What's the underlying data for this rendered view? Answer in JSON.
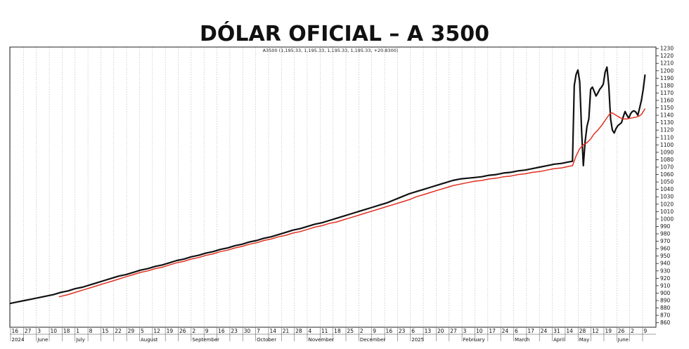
{
  "chart_data": {
    "type": "line",
    "title": "DÓLAR OFICIAL – A 3500",
    "subtitle": "A3500 (1,195.33, 1,195.33, 1,195.33, 1,195.33, +20.8300)",
    "ylim": [
      854,
      1232
    ],
    "yticks": [
      860,
      870,
      880,
      890,
      900,
      910,
      920,
      930,
      940,
      950,
      960,
      970,
      980,
      990,
      1000,
      1010,
      1020,
      1030,
      1040,
      1050,
      1060,
      1070,
      1080,
      1090,
      1100,
      1110,
      1120,
      1130,
      1140,
      1150,
      1160,
      1170,
      1180,
      1190,
      1200,
      1210,
      1220,
      1230
    ],
    "x_day_ticks": [
      "16",
      "27",
      "3",
      "10",
      "18",
      "1",
      "8",
      "15",
      "22",
      "29",
      "5",
      "12",
      "19",
      "26",
      "2",
      "9",
      "16",
      "23",
      "30",
      "7",
      "14",
      "21",
      "28",
      "4",
      "11",
      "18",
      "25",
      "2",
      "9",
      "16",
      "23",
      "6",
      "13",
      "20",
      "27",
      "3",
      "10",
      "17",
      "24",
      "6",
      "17",
      "24",
      "31",
      "14",
      "28",
      "12",
      "19",
      "26",
      "2",
      "9"
    ],
    "x_month_labels": [
      "2024",
      "June",
      "July",
      "August",
      "September",
      "October",
      "November",
      "December",
      "2025",
      "February",
      "March",
      "April",
      "May",
      "June"
    ],
    "series": [
      {
        "color": "#111111",
        "points": [
          [
            0,
            886
          ],
          [
            4,
            888
          ],
          [
            8,
            890
          ],
          [
            12,
            892
          ],
          [
            16,
            894
          ],
          [
            20,
            896
          ],
          [
            24,
            898
          ],
          [
            28,
            901
          ],
          [
            32,
            903
          ],
          [
            36,
            906
          ],
          [
            40,
            908
          ],
          [
            44,
            911
          ],
          [
            48,
            914
          ],
          [
            52,
            917
          ],
          [
            56,
            920
          ],
          [
            60,
            923
          ],
          [
            64,
            925
          ],
          [
            68,
            928
          ],
          [
            72,
            931
          ],
          [
            76,
            933
          ],
          [
            80,
            936
          ],
          [
            84,
            938
          ],
          [
            88,
            941
          ],
          [
            92,
            944
          ],
          [
            96,
            946
          ],
          [
            100,
            949
          ],
          [
            104,
            951
          ],
          [
            108,
            954
          ],
          [
            112,
            956
          ],
          [
            116,
            959
          ],
          [
            120,
            961
          ],
          [
            124,
            964
          ],
          [
            128,
            966
          ],
          [
            132,
            969
          ],
          [
            136,
            971
          ],
          [
            140,
            974
          ],
          [
            144,
            976
          ],
          [
            148,
            979
          ],
          [
            152,
            982
          ],
          [
            156,
            985
          ],
          [
            160,
            987
          ],
          [
            164,
            990
          ],
          [
            168,
            993
          ],
          [
            172,
            995
          ],
          [
            176,
            998
          ],
          [
            180,
            1001
          ],
          [
            184,
            1004
          ],
          [
            188,
            1007
          ],
          [
            192,
            1010
          ],
          [
            196,
            1013
          ],
          [
            200,
            1016
          ],
          [
            204,
            1019
          ],
          [
            208,
            1022
          ],
          [
            212,
            1026
          ],
          [
            216,
            1030
          ],
          [
            220,
            1034
          ],
          [
            224,
            1037
          ],
          [
            228,
            1040
          ],
          [
            232,
            1043
          ],
          [
            236,
            1046
          ],
          [
            240,
            1049
          ],
          [
            244,
            1052
          ],
          [
            248,
            1054
          ],
          [
            252,
            1055
          ],
          [
            256,
            1056
          ],
          [
            260,
            1057
          ],
          [
            264,
            1059
          ],
          [
            268,
            1060
          ],
          [
            272,
            1062
          ],
          [
            276,
            1063
          ],
          [
            280,
            1065
          ],
          [
            284,
            1066
          ],
          [
            288,
            1068
          ],
          [
            292,
            1070
          ],
          [
            296,
            1072
          ],
          [
            300,
            1074
          ],
          [
            304,
            1075
          ],
          [
            308,
            1077
          ],
          [
            310,
            1078
          ],
          [
            311,
            1180
          ],
          [
            312,
            1195
          ],
          [
            313,
            1201
          ],
          [
            314,
            1185
          ],
          [
            315,
            1120
          ],
          [
            316,
            1072
          ],
          [
            317,
            1105
          ],
          [
            318,
            1125
          ],
          [
            319,
            1135
          ],
          [
            320,
            1175
          ],
          [
            321,
            1178
          ],
          [
            322,
            1172
          ],
          [
            323,
            1166
          ],
          [
            324,
            1170
          ],
          [
            325,
            1175
          ],
          [
            326,
            1178
          ],
          [
            327,
            1182
          ],
          [
            328,
            1198
          ],
          [
            329,
            1205
          ],
          [
            330,
            1180
          ],
          [
            331,
            1135
          ],
          [
            332,
            1120
          ],
          [
            333,
            1116
          ],
          [
            334,
            1122
          ],
          [
            335,
            1126
          ],
          [
            336,
            1128
          ],
          [
            337,
            1130
          ],
          [
            338,
            1138
          ],
          [
            339,
            1145
          ],
          [
            340,
            1140
          ],
          [
            341,
            1136
          ],
          [
            342,
            1142
          ],
          [
            343,
            1145
          ],
          [
            344,
            1146
          ],
          [
            345,
            1144
          ],
          [
            346,
            1140
          ],
          [
            347,
            1150
          ],
          [
            348,
            1160
          ],
          [
            349,
            1175
          ],
          [
            350,
            1195
          ]
        ]
      },
      {
        "color": "#e03020",
        "points": [
          [
            27,
            895
          ],
          [
            32,
            898
          ],
          [
            36,
            901
          ],
          [
            40,
            904
          ],
          [
            44,
            907
          ],
          [
            48,
            910
          ],
          [
            52,
            913
          ],
          [
            56,
            916
          ],
          [
            60,
            919
          ],
          [
            64,
            922
          ],
          [
            68,
            925
          ],
          [
            72,
            928
          ],
          [
            76,
            930
          ],
          [
            80,
            933
          ],
          [
            84,
            935
          ],
          [
            88,
            938
          ],
          [
            92,
            941
          ],
          [
            96,
            943
          ],
          [
            100,
            946
          ],
          [
            104,
            948
          ],
          [
            108,
            951
          ],
          [
            112,
            953
          ],
          [
            116,
            956
          ],
          [
            120,
            958
          ],
          [
            124,
            961
          ],
          [
            128,
            963
          ],
          [
            132,
            966
          ],
          [
            136,
            968
          ],
          [
            140,
            971
          ],
          [
            144,
            973
          ],
          [
            148,
            976
          ],
          [
            152,
            978
          ],
          [
            156,
            981
          ],
          [
            160,
            983
          ],
          [
            164,
            986
          ],
          [
            168,
            989
          ],
          [
            172,
            991
          ],
          [
            176,
            994
          ],
          [
            180,
            996
          ],
          [
            184,
            999
          ],
          [
            188,
            1002
          ],
          [
            192,
            1005
          ],
          [
            196,
            1008
          ],
          [
            200,
            1011
          ],
          [
            204,
            1014
          ],
          [
            208,
            1017
          ],
          [
            212,
            1020
          ],
          [
            216,
            1023
          ],
          [
            220,
            1026
          ],
          [
            224,
            1030
          ],
          [
            228,
            1033
          ],
          [
            232,
            1036
          ],
          [
            236,
            1039
          ],
          [
            240,
            1042
          ],
          [
            244,
            1045
          ],
          [
            248,
            1047
          ],
          [
            252,
            1049
          ],
          [
            256,
            1051
          ],
          [
            260,
            1052
          ],
          [
            264,
            1054
          ],
          [
            268,
            1055
          ],
          [
            272,
            1057
          ],
          [
            276,
            1058
          ],
          [
            280,
            1060
          ],
          [
            284,
            1061
          ],
          [
            288,
            1063
          ],
          [
            292,
            1064
          ],
          [
            296,
            1066
          ],
          [
            300,
            1068
          ],
          [
            304,
            1069
          ],
          [
            308,
            1071
          ],
          [
            310,
            1072
          ],
          [
            312,
            1085
          ],
          [
            314,
            1095
          ],
          [
            316,
            1100
          ],
          [
            318,
            1103
          ],
          [
            320,
            1108
          ],
          [
            322,
            1115
          ],
          [
            324,
            1120
          ],
          [
            326,
            1126
          ],
          [
            328,
            1133
          ],
          [
            330,
            1140
          ],
          [
            331,
            1143
          ],
          [
            332,
            1143
          ],
          [
            334,
            1140
          ],
          [
            336,
            1137
          ],
          [
            338,
            1135
          ],
          [
            340,
            1135
          ],
          [
            342,
            1136
          ],
          [
            344,
            1137
          ],
          [
            346,
            1138
          ],
          [
            348,
            1141
          ],
          [
            350,
            1149
          ]
        ]
      }
    ],
    "grid": true,
    "legend": "none"
  }
}
